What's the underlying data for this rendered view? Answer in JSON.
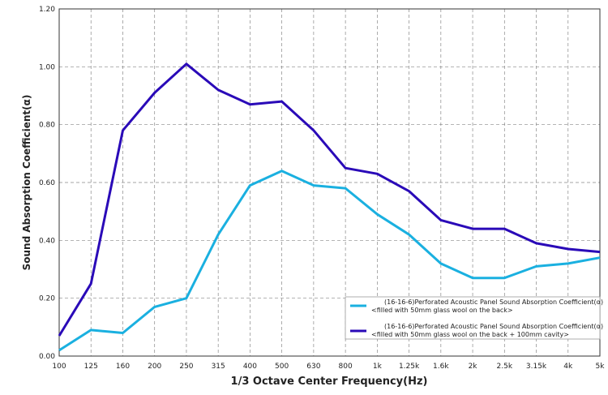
{
  "chart_data": {
    "type": "line",
    "xlabel": "1/3 Octave Center Frequency(Hz)",
    "ylabel": "Sound Absorption Coefficient(α)",
    "categories": [
      "100",
      "125",
      "160",
      "200",
      "250",
      "315",
      "400",
      "500",
      "630",
      "800",
      "1k",
      "1.25k",
      "1.6k",
      "2k",
      "2.5k",
      "3.15k",
      "4k",
      "5k"
    ],
    "ylim": [
      0,
      1.2
    ],
    "yticks": [
      "0.00",
      "0.20",
      "0.40",
      "0.60",
      "0.80",
      "1.00",
      "1.20"
    ],
    "grid": "dashed vertical and horizontal",
    "legend_position": "bottom-right",
    "series": [
      {
        "legend_line1": "(16-16-6)Perforated Acoustic Panel Sound Absorption Coefficient(α)",
        "legend_line2": "<filled with 50mm glass wool on the back>",
        "color": "#1ab0e0",
        "values": [
          0.02,
          0.09,
          0.08,
          0.17,
          0.2,
          0.42,
          0.59,
          0.64,
          0.59,
          0.58,
          0.49,
          0.42,
          0.32,
          0.27,
          0.27,
          0.31,
          0.32,
          0.34
        ]
      },
      {
        "legend_line1": "(16-16-6)Perforated Acoustic Panel Sound Absorption Coefficient(α)",
        "legend_line2": "<filled with 50mm glass wool on the back + 100mm cavity>",
        "color": "#2a0ab8",
        "values": [
          0.07,
          0.25,
          0.78,
          0.91,
          1.01,
          0.92,
          0.87,
          0.88,
          0.78,
          0.65,
          0.63,
          0.57,
          0.47,
          0.44,
          0.44,
          0.39,
          0.37,
          0.36
        ]
      }
    ]
  }
}
